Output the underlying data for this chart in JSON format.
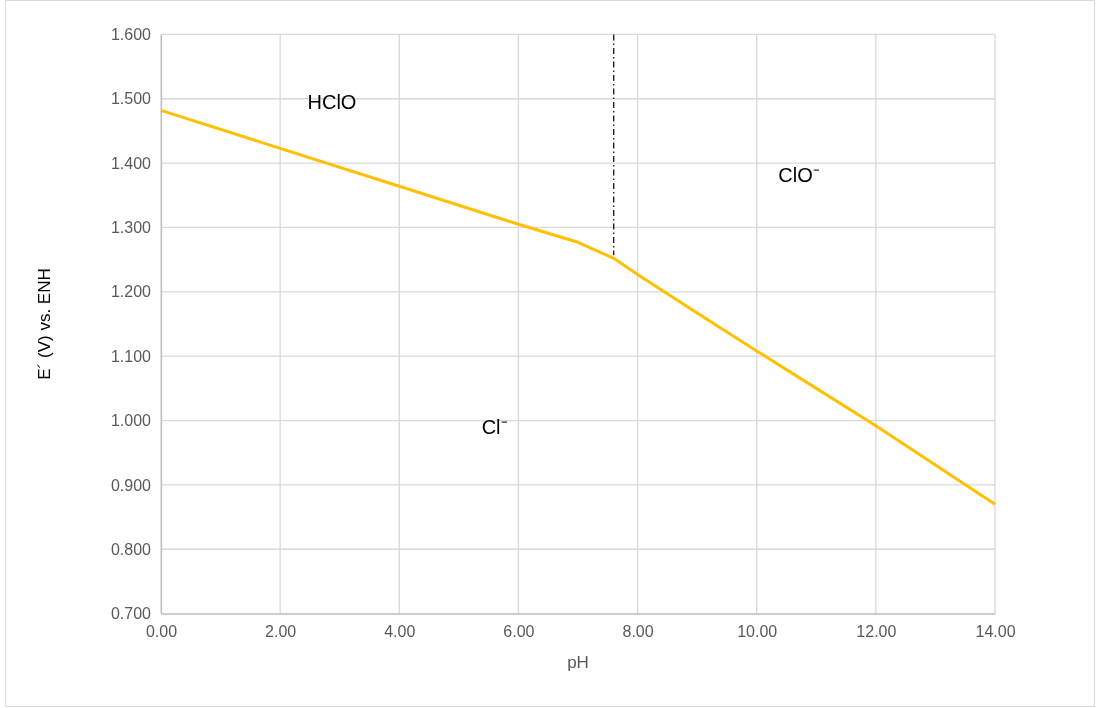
{
  "chart_data": {
    "type": "line",
    "xlabel": "pH",
    "ylabel": "E´ (V)  vs. ENH",
    "xlim": [
      0,
      14
    ],
    "ylim": [
      0.7,
      1.6
    ],
    "xticks": [
      {
        "value": 0,
        "label": "0.00"
      },
      {
        "value": 2,
        "label": "2.00"
      },
      {
        "value": 4,
        "label": "4.00"
      },
      {
        "value": 6,
        "label": "6.00"
      },
      {
        "value": 8,
        "label": "8.00"
      },
      {
        "value": 10,
        "label": "10.00"
      },
      {
        "value": 12,
        "label": "12.00"
      },
      {
        "value": 14,
        "label": "14.00"
      }
    ],
    "yticks": [
      {
        "value": 0.7,
        "label": "0.700"
      },
      {
        "value": 0.8,
        "label": "0.800"
      },
      {
        "value": 0.9,
        "label": "0.900"
      },
      {
        "value": 1.0,
        "label": "1.000"
      },
      {
        "value": 1.1,
        "label": "1.100"
      },
      {
        "value": 1.2,
        "label": "1.200"
      },
      {
        "value": 1.3,
        "label": "1.300"
      },
      {
        "value": 1.4,
        "label": "1.400"
      },
      {
        "value": 1.5,
        "label": "1.500"
      },
      {
        "value": 1.6,
        "label": "1.600"
      }
    ],
    "grid": true,
    "series": [
      {
        "color": "#ffc000",
        "line_style": "solid",
        "x": [
          0,
          2,
          4,
          6,
          7,
          7.6,
          8,
          9,
          10,
          11,
          12,
          13,
          14
        ],
        "values": [
          1.482,
          1.423,
          1.364,
          1.305,
          1.277,
          1.252,
          1.227,
          1.167,
          1.108,
          1.05,
          0.992,
          0.931,
          0.87
        ]
      },
      {
        "color": "#000000",
        "line_style": "dashed",
        "x": [
          7.6,
          7.6
        ],
        "values": [
          1.6,
          1.257
        ]
      }
    ],
    "annotations": [
      "HClO",
      "ClO⁻",
      "Cl⁻"
    ]
  }
}
